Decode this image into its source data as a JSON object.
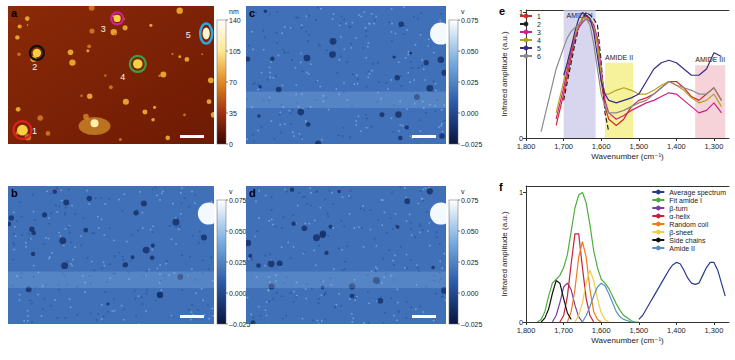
{
  "panels": [
    {
      "label": "a",
      "colorbar": {
        "unit": "nm",
        "range": [
          0,
          140
        ],
        "ticks": [
          0,
          35,
          70,
          105,
          140
        ],
        "colors": [
          "#3a0600",
          "#a03010",
          "#e08a20",
          "#ffe890",
          "#ffffff"
        ]
      },
      "markers": [
        {
          "label": "1",
          "color": "#e0201e"
        },
        {
          "label": "2",
          "color": "#111111"
        },
        {
          "label": "3",
          "color": "#d0209a"
        },
        {
          "label": "4",
          "color": "#3aa040"
        },
        {
          "label": "5",
          "color": "#2aa8e0"
        }
      ]
    },
    {
      "label": "b",
      "colorbar": {
        "unit": "v",
        "range": [
          -0.025,
          0.075
        ],
        "ticks": [
          {
            "value": 0.075,
            "label": "0.075"
          },
          {
            "value": 0.05,
            "label": "0.050"
          },
          {
            "value": 0.025,
            "label": "0.025"
          },
          {
            "value": 0,
            "label": "0.000"
          },
          {
            "value": -0.025,
            "label": "–0.025"
          }
        ],
        "colors": [
          "#0a1540",
          "#2a5aa8",
          "#7aaee0",
          "#ffffff"
        ]
      }
    },
    {
      "label": "c",
      "colorbar": {
        "unit": "v",
        "range": [
          -0.025,
          0.075
        ],
        "ticks": [
          {
            "value": 0.075,
            "label": "0.075"
          },
          {
            "value": 0.05,
            "label": "0.050"
          },
          {
            "value": 0.025,
            "label": "0.025"
          },
          {
            "value": 0,
            "label": "0.000"
          },
          {
            "value": -0.025,
            "label": "–0.025"
          }
        ],
        "colors": [
          "#0a1540",
          "#2a5aa8",
          "#7aaee0",
          "#ffffff"
        ]
      }
    },
    {
      "label": "d",
      "colorbar": {
        "unit": "v",
        "range": [
          -0.025,
          0.075
        ],
        "ticks": [
          {
            "value": 0.075,
            "label": "0.075"
          },
          {
            "value": 0.05,
            "label": "0.050"
          },
          {
            "value": 0.025,
            "label": "0.025"
          },
          {
            "value": 0,
            "label": "0.000"
          },
          {
            "value": -0.025,
            "label": "–0.025"
          }
        ],
        "colors": [
          "#0a1540",
          "#2a5aa8",
          "#7aaee0",
          "#ffffff"
        ]
      }
    }
  ],
  "chart_data": [
    {
      "label": "e",
      "type": "line",
      "xlabel": "Wavenumber (cm⁻¹)",
      "ylabel": "Infrared amplitude (a.u.)",
      "xlim": [
        1800,
        1260
      ],
      "xticks": [
        {
          "value": 1800,
          "label": "1,800"
        },
        {
          "value": 1700,
          "label": "1,700"
        },
        {
          "value": 1600,
          "label": "1,600"
        },
        {
          "value": 1500,
          "label": "1,500"
        },
        {
          "value": 1400,
          "label": "1,400"
        },
        {
          "value": 1300,
          "label": "1,300"
        }
      ],
      "ylim": [
        0,
        1.02
      ],
      "yticks": [
        0,
        1
      ],
      "grid": false,
      "legend": "top-left",
      "x": [
        1760,
        1740,
        1720,
        1700,
        1690,
        1680,
        1670,
        1660,
        1650,
        1640,
        1630,
        1620,
        1610,
        1600,
        1590,
        1580,
        1560,
        1540,
        1520,
        1500,
        1480,
        1460,
        1440,
        1420,
        1400,
        1380,
        1360,
        1340,
        1320,
        1300,
        1280
      ],
      "series": [
        {
          "name": "1",
          "color": "#d62728",
          "values": [
            null,
            null,
            0.1,
            0.35,
            0.5,
            0.65,
            0.8,
            0.9,
            0.95,
            0.97,
            0.95,
            0.9,
            0.75,
            0.45,
            0.25,
            0.15,
            0.1,
            0.15,
            0.25,
            0.3,
            0.32,
            0.35,
            0.4,
            0.45,
            0.45,
            0.4,
            0.33,
            0.3,
            0.35,
            0.4,
            0.3
          ]
        },
        {
          "name": "2",
          "color": "#222222",
          "line_style": "dashed",
          "values": [
            null,
            null,
            null,
            0.3,
            0.45,
            0.6,
            0.75,
            0.88,
            0.95,
            1.0,
            0.98,
            0.95,
            0.9,
            0.6,
            0.2,
            0.05,
            null,
            null,
            null,
            null,
            null,
            null,
            null,
            null,
            null,
            null,
            null,
            null,
            null,
            null,
            null
          ]
        },
        {
          "name": "3",
          "color": "#d0208a",
          "values": [
            null,
            null,
            0.15,
            0.4,
            0.55,
            0.7,
            0.8,
            0.88,
            0.92,
            0.95,
            0.93,
            0.9,
            0.8,
            0.55,
            0.3,
            0.2,
            0.15,
            0.18,
            0.22,
            0.25,
            0.28,
            0.3,
            0.33,
            0.36,
            0.35,
            0.3,
            0.25,
            0.2,
            0.22,
            0.28,
            0.2
          ]
        },
        {
          "name": "4",
          "color": "#b8a020",
          "values": [
            null,
            null,
            0.2,
            0.45,
            0.6,
            0.72,
            0.82,
            0.9,
            0.95,
            0.96,
            0.94,
            0.88,
            0.75,
            0.5,
            0.35,
            0.35,
            0.38,
            0.4,
            0.38,
            0.35,
            0.35,
            0.38,
            0.42,
            0.45,
            0.42,
            0.38,
            0.32,
            0.28,
            0.3,
            0.35,
            0.25
          ]
        },
        {
          "name": "5",
          "color": "#3a2a8a",
          "values": [
            null,
            null,
            null,
            0.5,
            0.6,
            0.72,
            0.85,
            0.95,
            1.0,
            0.98,
            0.95,
            0.85,
            0.65,
            0.45,
            0.35,
            0.3,
            0.28,
            0.3,
            0.32,
            0.35,
            0.45,
            0.55,
            0.6,
            0.62,
            0.6,
            0.55,
            0.5,
            0.5,
            0.55,
            0.68,
            0.65
          ]
        },
        {
          "name": "6",
          "color": "#8a8a8a",
          "values": [
            0.05,
            0.3,
            0.55,
            0.72,
            0.8,
            0.85,
            0.88,
            0.9,
            0.93,
            0.95,
            0.9,
            0.75,
            0.55,
            0.35,
            0.25,
            0.2,
            0.2,
            0.22,
            0.25,
            0.28,
            0.3,
            0.35,
            0.4,
            0.45,
            0.42,
            0.4,
            0.38,
            0.35,
            0.35,
            0.4,
            0.3
          ]
        }
      ],
      "regions": [
        {
          "label": "AMIDE I",
          "x": [
            1700,
            1615
          ],
          "y": [
            0,
            1.02
          ],
          "color": "#cbc8ea"
        },
        {
          "label": "AMIDE II",
          "x": [
            1590,
            1515
          ],
          "y": [
            0,
            0.6
          ],
          "color": "#f3ee7a"
        },
        {
          "label": "AMIDE III",
          "x": [
            1350,
            1270
          ],
          "y": [
            0,
            0.58
          ],
          "color": "#f2c4cc"
        }
      ]
    },
    {
      "label": "f",
      "type": "line",
      "xlabel": "Wavenumber (cm⁻¹)",
      "ylabel": "Infrared amplitude (a.u.)",
      "xlim": [
        1800,
        1260
      ],
      "xticks": [
        {
          "value": 1800,
          "label": "1,800"
        },
        {
          "value": 1700,
          "label": "1,700"
        },
        {
          "value": 1600,
          "label": "1,600"
        },
        {
          "value": 1500,
          "label": "1,500"
        },
        {
          "value": 1400,
          "label": "1,400"
        },
        {
          "value": 1300,
          "label": "1,300"
        }
      ],
      "ylim": [
        0,
        1.05
      ],
      "yticks": [
        0,
        1
      ],
      "grid": false,
      "legend": "top-right",
      "series": [
        {
          "name": "Average spectrum",
          "color": "#283c8c",
          "x": [
            1500,
            1490,
            1480,
            1470,
            1460,
            1450,
            1440,
            1430,
            1420,
            1410,
            1400,
            1390,
            1380,
            1370,
            1360,
            1350,
            1340,
            1330,
            1320,
            1310,
            1300,
            1290,
            1280,
            1270
          ],
          "values": [
            0.02,
            0.05,
            0.1,
            0.15,
            0.2,
            0.25,
            0.3,
            0.35,
            0.4,
            0.44,
            0.46,
            0.45,
            0.4,
            0.34,
            0.3,
            0.29,
            0.3,
            0.36,
            0.42,
            0.46,
            0.46,
            0.4,
            0.3,
            0.2
          ]
        },
        {
          "name": "Fit amide I",
          "color": "#4caf3c",
          "x": [
            1770,
            1760,
            1750,
            1740,
            1730,
            1720,
            1710,
            1700,
            1690,
            1680,
            1670,
            1660,
            1650,
            1640,
            1630,
            1620,
            1610,
            1600,
            1590,
            1580,
            1570,
            1560,
            1550,
            1540,
            1530,
            1520,
            1510,
            1500
          ],
          "values": [
            0,
            0.02,
            0.08,
            0.2,
            0.3,
            0.33,
            0.36,
            0.42,
            0.52,
            0.7,
            0.88,
            0.98,
            1.0,
            0.92,
            0.75,
            0.55,
            0.42,
            0.33,
            0.3,
            0.26,
            0.2,
            0.14,
            0.09,
            0.05,
            0.03,
            0.01,
            0,
            0
          ]
        },
        {
          "name": "β-turn",
          "color": "#7a3ea0",
          "x": [
            1730,
            1720,
            1710,
            1700,
            1690,
            1680,
            1670,
            1660,
            1650
          ],
          "values": [
            0,
            0.05,
            0.15,
            0.27,
            0.3,
            0.25,
            0.13,
            0.04,
            0
          ]
        },
        {
          "name": "α-helix",
          "color": "#c8203a",
          "x": [
            1710,
            1700,
            1690,
            1680,
            1670,
            1660,
            1650,
            1640,
            1630,
            1620
          ],
          "values": [
            0,
            0.05,
            0.2,
            0.45,
            0.68,
            0.68,
            0.42,
            0.18,
            0.05,
            0
          ]
        },
        {
          "name": "Random coil",
          "color": "#f07a1a",
          "x": [
            1690,
            1680,
            1670,
            1660,
            1650,
            1640,
            1630,
            1620,
            1610,
            1600
          ],
          "values": [
            0,
            0.08,
            0.25,
            0.5,
            0.62,
            0.5,
            0.25,
            0.08,
            0.02,
            0
          ]
        },
        {
          "name": "β-sheet",
          "color": "#f0d040",
          "x": [
            1670,
            1660,
            1650,
            1640,
            1630,
            1620,
            1610,
            1600,
            1590,
            1580
          ],
          "values": [
            0,
            0.05,
            0.15,
            0.3,
            0.4,
            0.32,
            0.18,
            0.07,
            0.02,
            0
          ]
        },
        {
          "name": "Side chains",
          "color": "#111111",
          "x": [
            1760,
            1750,
            1740,
            1730,
            1720,
            1710,
            1700,
            1690,
            1680
          ],
          "values": [
            0,
            0.03,
            0.1,
            0.22,
            0.32,
            0.3,
            0.18,
            0.07,
            0.02
          ]
        },
        {
          "name": "Amide II",
          "color": "#5b8fc0",
          "x": [
            1650,
            1640,
            1630,
            1620,
            1610,
            1600,
            1590,
            1580,
            1570,
            1560,
            1550,
            1540,
            1530,
            1520,
            1510
          ],
          "values": [
            0,
            0.05,
            0.12,
            0.2,
            0.27,
            0.3,
            0.28,
            0.22,
            0.15,
            0.08,
            0.04,
            0.02,
            0.01,
            0,
            0
          ]
        }
      ]
    }
  ]
}
